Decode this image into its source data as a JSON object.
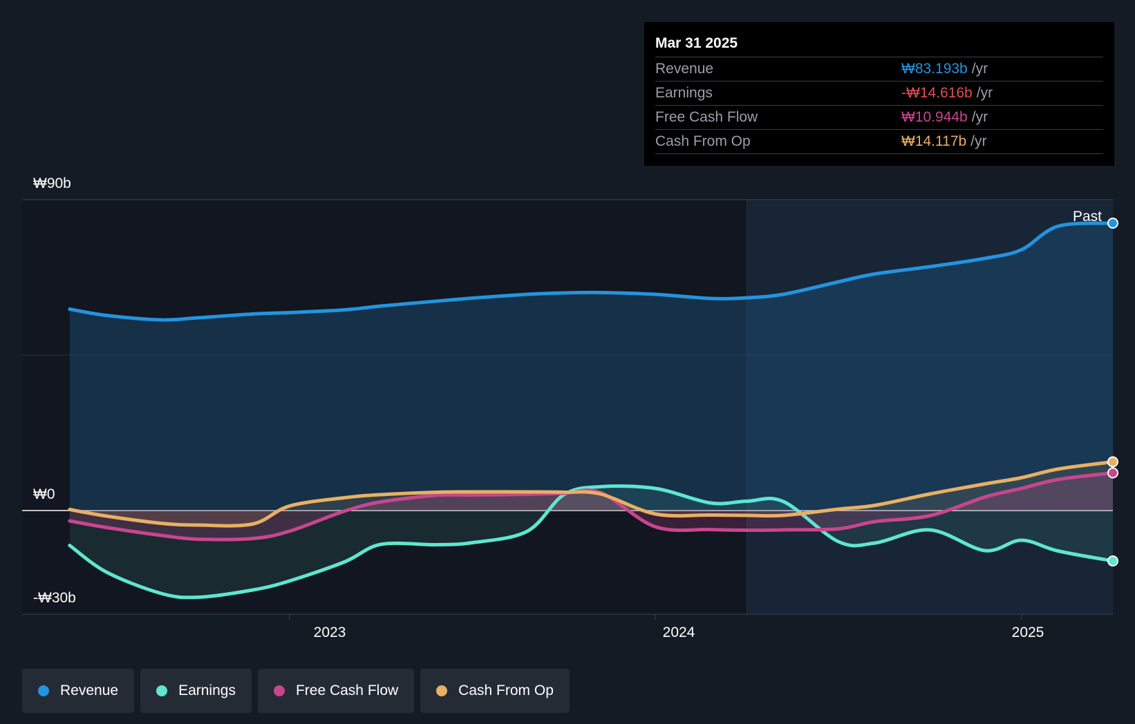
{
  "tooltip": {
    "date": "Mar 31 2025",
    "rows": [
      {
        "label": "Revenue",
        "value": "₩83.193b",
        "unit": "/yr",
        "color": "#2394df"
      },
      {
        "label": "Earnings",
        "value": "-₩14.616b",
        "unit": "/yr",
        "color": "#e64d50"
      },
      {
        "label": "Free Cash Flow",
        "value": "₩10.944b",
        "unit": "/yr",
        "color": "#c8468e"
      },
      {
        "label": "Cash From Op",
        "value": "₩14.117b",
        "unit": "/yr",
        "color": "#e8b063"
      }
    ]
  },
  "legend": [
    {
      "label": "Revenue",
      "color": "#2394df"
    },
    {
      "label": "Earnings",
      "color": "#5ee6d0"
    },
    {
      "label": "Free Cash Flow",
      "color": "#c8468e"
    },
    {
      "label": "Cash From Op",
      "color": "#e8b063"
    }
  ],
  "chart_data": {
    "type": "line",
    "title": "",
    "y_tick_labels": [
      "₩90b",
      "₩0",
      "-₩30b"
    ],
    "ylim": [
      -30,
      90
    ],
    "xlim": [
      2022.27,
      2025.25
    ],
    "x_ticks": [
      2023,
      2024,
      2025
    ],
    "x_tick_labels": [
      "2023",
      "2024",
      "2025"
    ],
    "past_label": "Past",
    "past_start": 2024.25,
    "series": [
      {
        "name": "Revenue",
        "color": "#2394df",
        "x": [
          2022.4,
          2022.5,
          2022.65,
          2022.75,
          2022.9,
          2023.0,
          2023.15,
          2023.25,
          2023.4,
          2023.5,
          2023.65,
          2023.75,
          2023.85,
          2024.0,
          2024.15,
          2024.25,
          2024.35,
          2024.5,
          2024.6,
          2024.75,
          2024.9,
          2025.0,
          2025.1,
          2025.25
        ],
        "y": [
          58.3,
          56.5,
          55.2,
          55.8,
          56.9,
          57.3,
          58.1,
          59.2,
          60.6,
          61.5,
          62.6,
          63.0,
          63.1,
          62.6,
          61.4,
          61.6,
          62.6,
          66.2,
          68.5,
          70.6,
          73.0,
          75.5,
          82.3,
          83.2
        ]
      },
      {
        "name": "Earnings",
        "color": "#5ee6d0",
        "x": [
          2022.4,
          2022.5,
          2022.65,
          2022.75,
          2022.9,
          2023.0,
          2023.15,
          2023.25,
          2023.4,
          2023.5,
          2023.65,
          2023.75,
          2023.85,
          2024.0,
          2024.15,
          2024.25,
          2024.35,
          2024.5,
          2024.6,
          2024.75,
          2024.9,
          2025.0,
          2025.1,
          2025.25
        ],
        "y": [
          -10.1,
          -17.8,
          -24.0,
          -25.1,
          -23.0,
          -20.4,
          -14.9,
          -9.8,
          -9.9,
          -9.3,
          -6.0,
          4.6,
          6.9,
          6.4,
          2.2,
          2.7,
          2.6,
          -9.0,
          -9.4,
          -5.6,
          -11.6,
          -8.6,
          -11.7,
          -14.6
        ]
      },
      {
        "name": "Free Cash Flow",
        "color": "#c8468e",
        "x": [
          2022.4,
          2022.5,
          2022.65,
          2022.75,
          2022.9,
          2023.0,
          2023.15,
          2023.25,
          2023.4,
          2023.5,
          2023.65,
          2023.75,
          2023.85,
          2024.0,
          2024.15,
          2024.25,
          2024.35,
          2024.5,
          2024.6,
          2024.75,
          2024.9,
          2025.0,
          2025.1,
          2025.25
        ],
        "y": [
          -3.0,
          -4.9,
          -7.2,
          -8.3,
          -8.1,
          -6.0,
          -0.2,
          2.5,
          4.4,
          4.5,
          4.7,
          5.0,
          5.2,
          -4.7,
          -5.5,
          -5.7,
          -5.6,
          -5.3,
          -3.2,
          -1.5,
          3.9,
          6.4,
          9.0,
          10.9
        ]
      },
      {
        "name": "Cash From Op",
        "color": "#e8b063",
        "x": [
          2022.4,
          2022.5,
          2022.65,
          2022.75,
          2022.9,
          2023.0,
          2023.15,
          2023.25,
          2023.4,
          2023.5,
          2023.65,
          2023.75,
          2023.85,
          2024.0,
          2024.15,
          2024.25,
          2024.35,
          2024.5,
          2024.6,
          2024.75,
          2024.9,
          2025.0,
          2025.1,
          2025.25
        ],
        "y": [
          0.3,
          -1.6,
          -3.7,
          -4.2,
          -3.9,
          1.3,
          3.7,
          4.6,
          5.3,
          5.4,
          5.4,
          5.3,
          4.8,
          -1.0,
          -1.3,
          -1.4,
          -1.4,
          0.4,
          1.5,
          4.8,
          7.7,
          9.5,
          12.0,
          14.1
        ]
      }
    ]
  }
}
